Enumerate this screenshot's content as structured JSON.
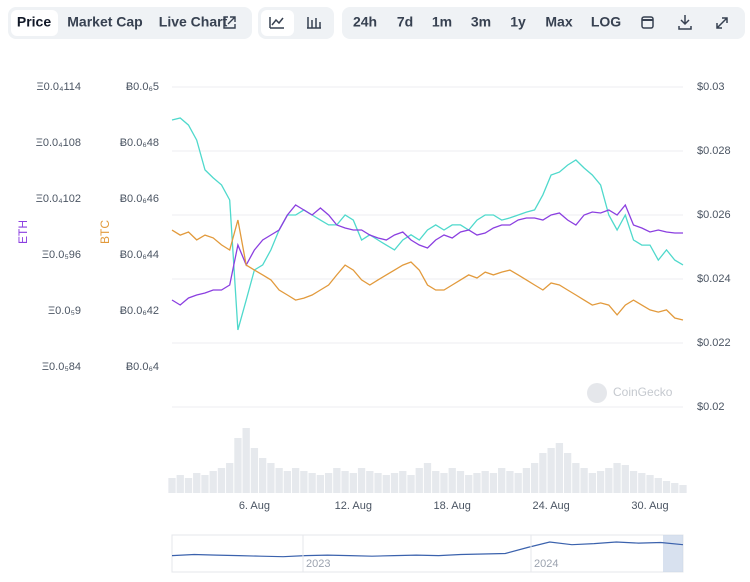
{
  "toolbar": {
    "tabs": [
      "Price",
      "Market Cap",
      "Live Chart"
    ],
    "ranges": [
      "24h",
      "7d",
      "1m",
      "3m",
      "1y",
      "Max",
      "LOG"
    ]
  },
  "chart_data": {
    "type": "line",
    "x": [
      1,
      1.5,
      2,
      2.5,
      3,
      3.5,
      4,
      4.5,
      5,
      5.5,
      6,
      6.5,
      7,
      7.5,
      8,
      8.5,
      9,
      9.5,
      10,
      10.5,
      11,
      11.5,
      12,
      12.5,
      13,
      13.5,
      14,
      14.5,
      15,
      15.5,
      16,
      16.5,
      17,
      17.5,
      18,
      18.5,
      19,
      19.5,
      20,
      20.5,
      21,
      21.5,
      22,
      22.5,
      23,
      23.5,
      24,
      24.5,
      25,
      25.5,
      26,
      26.5,
      27,
      27.5,
      28,
      28.5,
      29,
      29.5,
      30,
      30.5,
      31,
      31.5,
      32
    ],
    "xlim": [
      1,
      32
    ],
    "xticks": [
      {
        "value": 6,
        "label": "6. Aug"
      },
      {
        "value": 12,
        "label": "12. Aug"
      },
      {
        "value": 18,
        "label": "18. Aug"
      },
      {
        "value": 24,
        "label": "24. Aug"
      },
      {
        "value": 30,
        "label": "30. Aug"
      }
    ],
    "ylim": [
      8.4e-06,
      1.14e-05
    ],
    "yticks": [
      {
        "value": 1.14e-05,
        "label": "Ξ0.0₄114"
      },
      {
        "value": 1.08e-05,
        "label": "Ξ0.0₄108"
      },
      {
        "value": 1.02e-05,
        "label": "Ξ0.0₄102"
      },
      {
        "value": 9.6e-06,
        "label": "Ξ0.0₅96"
      },
      {
        "value": 9e-06,
        "label": "Ξ0.0₅9"
      },
      {
        "value": 8.4e-06,
        "label": "Ξ0.0₅84"
      }
    ],
    "y2lim": [
      0.02,
      0.03
    ],
    "y2ticks": [
      {
        "value": 0.03,
        "label": "$0.03"
      },
      {
        "value": 0.028,
        "label": "$0.028"
      },
      {
        "value": 0.026,
        "label": "$0.026"
      },
      {
        "value": 0.024,
        "label": "$0.024"
      },
      {
        "value": 0.022,
        "label": "$0.022"
      },
      {
        "value": 0.02,
        "label": "$0.02"
      }
    ],
    "y3lim": [
      4e-07,
      5e-07
    ],
    "y3ticks": [
      {
        "value": 5e-07,
        "label": "Ƀ0.0₆5"
      },
      {
        "value": 4.8e-07,
        "label": "Ƀ0.0₆48"
      },
      {
        "value": 4.6e-07,
        "label": "Ƀ0.0₆46"
      },
      {
        "value": 4.4e-07,
        "label": "Ƀ0.0₆44"
      },
      {
        "value": 4.2e-07,
        "label": "Ƀ0.0₆42"
      },
      {
        "value": 4e-07,
        "label": "Ƀ0.0₆4"
      }
    ],
    "grid": true,
    "series": [
      {
        "color": "#4fd9cc",
        "axis": "y2",
        "values": [
          0.02897,
          0.02903,
          0.02881,
          0.02834,
          0.02741,
          0.02716,
          0.02694,
          0.02647,
          0.02241,
          0.02334,
          0.02428,
          0.02444,
          0.02491,
          0.02553,
          0.026,
          0.026,
          0.02616,
          0.026,
          0.02584,
          0.02569,
          0.02569,
          0.026,
          0.02584,
          0.02522,
          0.02538,
          0.02522,
          0.02506,
          0.02491,
          0.02522,
          0.02538,
          0.02522,
          0.02553,
          0.02569,
          0.02553,
          0.02569,
          0.02569,
          0.02553,
          0.02584,
          0.026,
          0.026,
          0.02584,
          0.02591,
          0.026,
          0.02609,
          0.02616,
          0.02663,
          0.02725,
          0.02734,
          0.02756,
          0.02772,
          0.02747,
          0.02725,
          0.02694,
          0.026,
          0.02553,
          0.026,
          0.02522,
          0.02506,
          0.02506,
          0.02459,
          0.02491,
          0.02459,
          0.02444
        ]
      },
      {
        "name": "ETH",
        "color": "#8b3fe0",
        "axis": "y",
        "values": [
          9.118e-06,
          9.064e-06,
          9.139e-06,
          9.171e-06,
          9.193e-06,
          9.225e-06,
          9.225e-06,
          9.279e-06,
          9.707e-06,
          9.493e-06,
          9.654e-06,
          9.761e-06,
          9.814e-06,
          9.868e-06,
          1.0029e-05,
          1.0136e-05,
          1.0082e-05,
          1.0029e-05,
          1.0104e-05,
          1.0029e-05,
          9.921e-06,
          9.889e-06,
          9.868e-06,
          9.868e-06,
          9.814e-06,
          9.782e-06,
          9.761e-06,
          9.814e-06,
          9.846e-06,
          9.761e-06,
          9.707e-06,
          9.675e-06,
          9.761e-06,
          9.814e-06,
          9.782e-06,
          9.846e-06,
          9.868e-06,
          9.814e-06,
          9.836e-06,
          9.889e-06,
          9.921e-06,
          9.921e-06,
          9.975e-06,
          9.996e-06,
          9.996e-06,
          9.975e-06,
          1.0029e-05,
          1.005e-05,
          9.975e-06,
          9.921e-06,
          1.0029e-05,
          1.0061e-05,
          1.005e-05,
          1.0082e-05,
          1.0029e-05,
          1.0136e-05,
          9.921e-06,
          9.889e-06,
          9.846e-06,
          9.868e-06,
          9.846e-06,
          9.836e-06,
          9.836e-06
        ]
      },
      {
        "name": "BTC",
        "color": "#e29a3c",
        "axis": "y3",
        "values": [
          4.489e-07,
          4.471e-07,
          4.482e-07,
          4.454e-07,
          4.471e-07,
          4.461e-07,
          4.436e-07,
          4.418e-07,
          4.525e-07,
          4.364e-07,
          4.346e-07,
          4.329e-07,
          4.311e-07,
          4.275e-07,
          4.257e-07,
          4.239e-07,
          4.246e-07,
          4.257e-07,
          4.275e-07,
          4.293e-07,
          4.329e-07,
          4.364e-07,
          4.346e-07,
          4.311e-07,
          4.293e-07,
          4.311e-07,
          4.329e-07,
          4.346e-07,
          4.364e-07,
          4.375e-07,
          4.346e-07,
          4.293e-07,
          4.275e-07,
          4.275e-07,
          4.293e-07,
          4.311e-07,
          4.329e-07,
          4.318e-07,
          4.339e-07,
          4.329e-07,
          4.339e-07,
          4.346e-07,
          4.329e-07,
          4.311e-07,
          4.293e-07,
          4.275e-07,
          4.3e-07,
          4.293e-07,
          4.275e-07,
          4.257e-07,
          4.239e-07,
          4.221e-07,
          4.229e-07,
          4.221e-07,
          4.186e-07,
          4.221e-07,
          4.239e-07,
          4.221e-07,
          4.204e-07,
          4.196e-07,
          4.204e-07,
          4.175e-07,
          4.168e-07
        ]
      }
    ],
    "volume": {
      "color": "#e6e9ed",
      "values": [
        15,
        18,
        15,
        20,
        18,
        22,
        25,
        30,
        55,
        65,
        45,
        35,
        30,
        25,
        22,
        25,
        22,
        20,
        18,
        20,
        25,
        22,
        20,
        25,
        22,
        20,
        18,
        20,
        22,
        18,
        25,
        30,
        22,
        20,
        25,
        22,
        18,
        20,
        22,
        20,
        25,
        22,
        20,
        25,
        30,
        40,
        45,
        50,
        40,
        30,
        25,
        20,
        22,
        25,
        30,
        28,
        22,
        20,
        18,
        15,
        12,
        10,
        8
      ]
    },
    "navigator": {
      "labels": [
        "2023",
        "2024"
      ],
      "color": "#3b62ad",
      "values": [
        30,
        32,
        31,
        30,
        29,
        28,
        30,
        31,
        30,
        29,
        30,
        31,
        30,
        32,
        33,
        34,
        45,
        55,
        50,
        52,
        55,
        53,
        54,
        50
      ]
    },
    "watermark": "CoinGecko"
  }
}
